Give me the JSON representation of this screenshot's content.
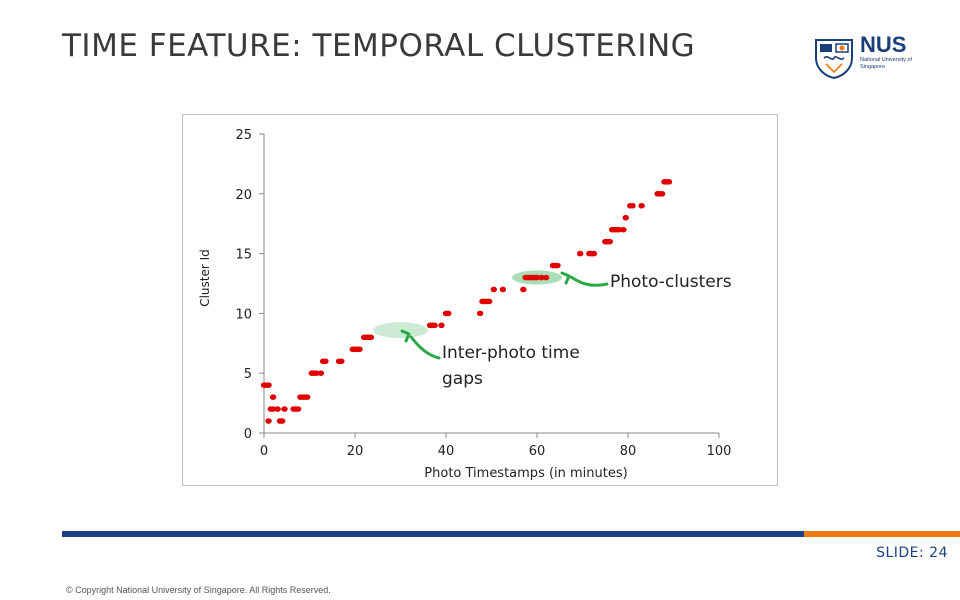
{
  "slide": {
    "title": "TIME FEATURE: TEMPORAL CLUSTERING",
    "slide_number": "SLIDE: 24",
    "copyright": "© Copyright National University of Singapore. All Rights Reserved."
  },
  "logo": {
    "name": "NUS",
    "subtitle": "National University of Singapore",
    "icon": "nus-crest-icon"
  },
  "annotations": {
    "photo_clusters": "Photo-clusters",
    "inter_photo_gaps": "Inter-photo time gaps"
  },
  "colors": {
    "points": "#e00000",
    "highlight": "#8fd19e",
    "arrow": "#2aa847",
    "bar_blue": "#1a4282",
    "bar_orange": "#ef7b10"
  },
  "chart_data": {
    "type": "scatter",
    "title": "",
    "xlabel": "Photo Timestamps (in minutes)",
    "ylabel": "Cluster Id",
    "xlim": [
      0,
      100
    ],
    "ylim": [
      0,
      25
    ],
    "xticks": [
      0,
      20,
      40,
      60,
      80,
      100
    ],
    "yticks": [
      0,
      5,
      10,
      15,
      20,
      25
    ],
    "grid": false,
    "legend": "none",
    "highlight_clusters": {
      "x_range": [
        54.5,
        65.5
      ],
      "y": 13
    },
    "highlight_gaps": {
      "x_range": [
        24,
        36
      ],
      "y": 8.6
    },
    "points": [
      [
        0,
        4
      ],
      [
        0.5,
        4
      ],
      [
        1,
        4
      ],
      [
        1,
        1
      ],
      [
        1.5,
        2
      ],
      [
        2,
        2
      ],
      [
        2,
        3
      ],
      [
        3,
        2
      ],
      [
        3.5,
        1
      ],
      [
        4,
        1
      ],
      [
        4.5,
        2
      ],
      [
        6.5,
        2
      ],
      [
        7,
        2
      ],
      [
        7.5,
        2
      ],
      [
        8,
        3
      ],
      [
        8.5,
        3
      ],
      [
        9,
        3
      ],
      [
        9.5,
        3
      ],
      [
        10.5,
        5
      ],
      [
        11,
        5
      ],
      [
        11.5,
        5
      ],
      [
        12.5,
        5
      ],
      [
        13,
        6
      ],
      [
        13.5,
        6
      ],
      [
        16.5,
        6
      ],
      [
        17,
        6
      ],
      [
        19.5,
        7
      ],
      [
        20,
        7
      ],
      [
        20.5,
        7
      ],
      [
        21,
        7
      ],
      [
        22,
        8
      ],
      [
        22.5,
        8
      ],
      [
        23,
        8
      ],
      [
        23.5,
        8
      ],
      [
        36.5,
        9
      ],
      [
        37,
        9
      ],
      [
        37.5,
        9
      ],
      [
        39,
        9
      ],
      [
        40,
        10
      ],
      [
        40.5,
        10
      ],
      [
        47.5,
        10
      ],
      [
        48,
        11
      ],
      [
        48.5,
        11
      ],
      [
        49,
        11
      ],
      [
        49.5,
        11
      ],
      [
        50.5,
        12
      ],
      [
        52.5,
        12
      ],
      [
        57,
        12
      ],
      [
        57.5,
        13
      ],
      [
        58,
        13
      ],
      [
        58.5,
        13
      ],
      [
        59,
        13
      ],
      [
        59.5,
        13
      ],
      [
        60,
        13
      ],
      [
        61,
        13
      ],
      [
        62,
        13
      ],
      [
        63.5,
        14
      ],
      [
        64,
        14
      ],
      [
        64.5,
        14
      ],
      [
        69.5,
        15
      ],
      [
        71.5,
        15
      ],
      [
        72,
        15
      ],
      [
        72.5,
        15
      ],
      [
        75,
        16
      ],
      [
        75.5,
        16
      ],
      [
        76,
        16
      ],
      [
        76.5,
        17
      ],
      [
        77,
        17
      ],
      [
        77.5,
        17
      ],
      [
        78,
        17
      ],
      [
        79,
        17
      ],
      [
        79.5,
        18
      ],
      [
        80.5,
        19
      ],
      [
        81,
        19
      ],
      [
        83,
        19
      ],
      [
        86.5,
        20
      ],
      [
        87,
        20
      ],
      [
        87.5,
        20
      ],
      [
        88,
        21
      ],
      [
        88.5,
        21
      ],
      [
        89,
        21
      ]
    ]
  }
}
